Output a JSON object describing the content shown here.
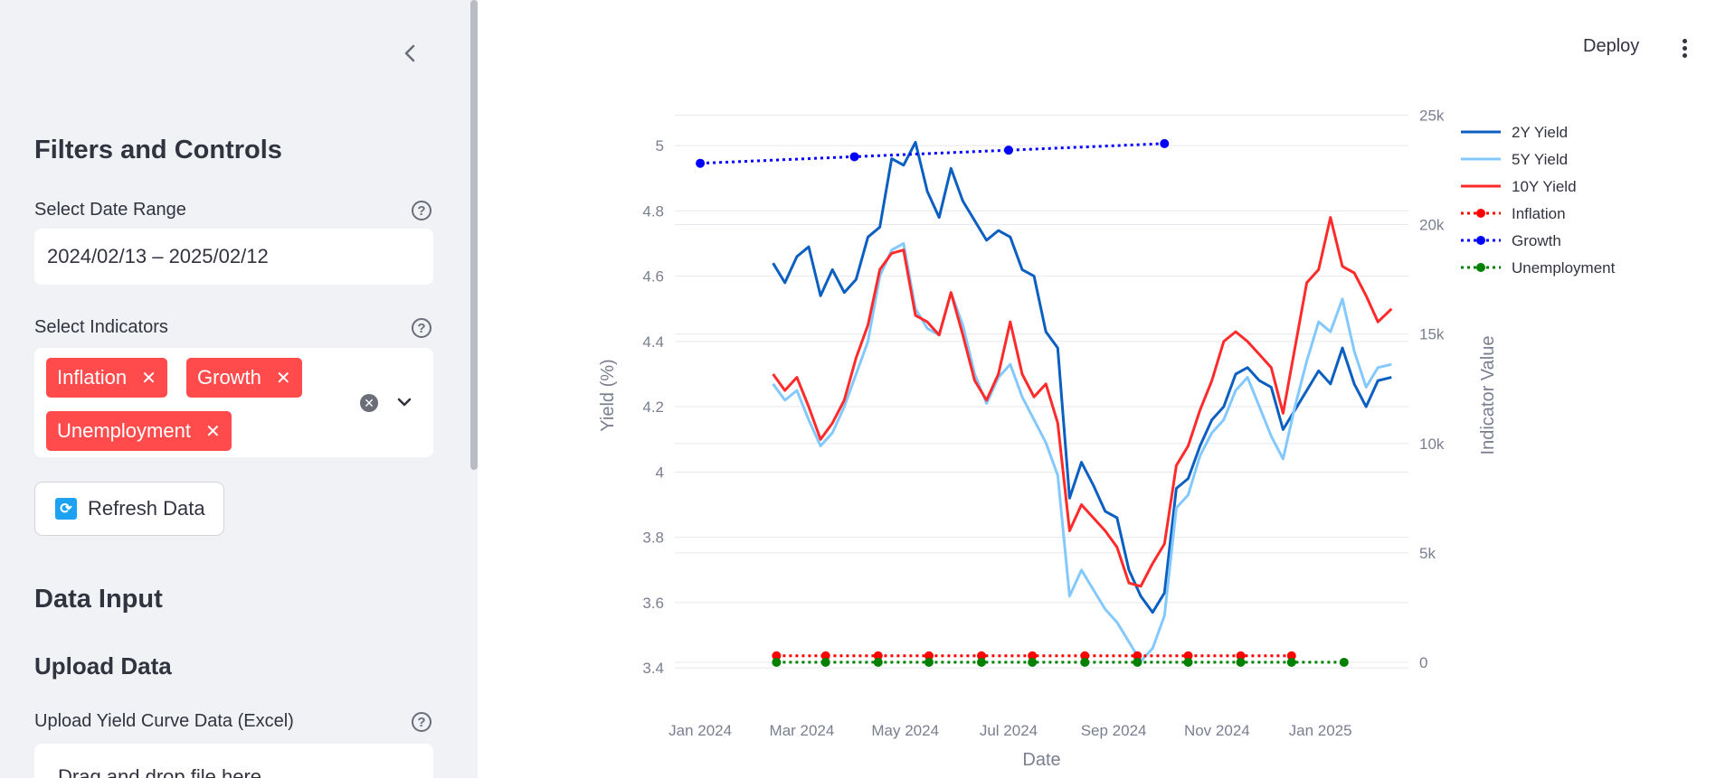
{
  "sidebar": {
    "title": "Filters and Controls",
    "date_range": {
      "label": "Select Date Range",
      "value": "2024/02/13 – 2025/02/12"
    },
    "indicators": {
      "label": "Select Indicators",
      "tags": [
        "Inflation",
        "Growth",
        "Unemployment"
      ]
    },
    "refresh_label": "Refresh Data",
    "data_input_title": "Data Input",
    "upload_title": "Upload Data",
    "upload_label": "Upload Yield Curve Data (Excel)",
    "upload_dropzone_text": "Drag and drop file here",
    "help_glyph": "?"
  },
  "header": {
    "deploy_label": "Deploy"
  },
  "chart_data": {
    "type": "line",
    "xlabel": "Date",
    "ylabel": "Yield (%)",
    "y2label": "Indicator Value",
    "x_ticks": [
      "Jan 2024",
      "Mar 2024",
      "May 2024",
      "Jul 2024",
      "Sep 2024",
      "Nov 2024",
      "Jan 2025"
    ],
    "x_range": [
      "2023-12-17",
      "2025-02-22"
    ],
    "ylim": [
      3.37,
      5.1
    ],
    "y_ticks": [
      3.4,
      3.6,
      3.8,
      4,
      4.2,
      4.4,
      4.6,
      4.8,
      5
    ],
    "y_tick_labels": [
      "3.4",
      "3.6",
      "3.8",
      "4",
      "4.2",
      "4.4",
      "4.6",
      "4.8",
      "5"
    ],
    "y2lim": [
      -700,
      25100
    ],
    "y2_ticks": [
      0,
      5000,
      10000,
      15000,
      20000,
      25000
    ],
    "y2_tick_labels": [
      "0",
      "5k",
      "10k",
      "15k",
      "20k",
      "25k"
    ],
    "grid": true,
    "legend_position": "right",
    "series": [
      {
        "name": "2Y Yield",
        "color": "#0b5fc0",
        "axis": "y",
        "style": "solid",
        "marker": false,
        "x": [
          "2024-02-13",
          "2024-02-20",
          "2024-02-27",
          "2024-03-05",
          "2024-03-12",
          "2024-03-19",
          "2024-03-26",
          "2024-04-02",
          "2024-04-09",
          "2024-04-16",
          "2024-04-23",
          "2024-04-30",
          "2024-05-07",
          "2024-05-14",
          "2024-05-21",
          "2024-05-28",
          "2024-06-04",
          "2024-06-11",
          "2024-06-18",
          "2024-06-25",
          "2024-07-02",
          "2024-07-09",
          "2024-07-16",
          "2024-07-23",
          "2024-07-30",
          "2024-08-06",
          "2024-08-13",
          "2024-08-20",
          "2024-08-27",
          "2024-09-03",
          "2024-09-10",
          "2024-09-17",
          "2024-09-24",
          "2024-10-01",
          "2024-10-08",
          "2024-10-15",
          "2024-10-22",
          "2024-10-29",
          "2024-11-05",
          "2024-11-12",
          "2024-11-19",
          "2024-11-26",
          "2024-12-03",
          "2024-12-10",
          "2024-12-17",
          "2024-12-24",
          "2024-12-31",
          "2025-01-07",
          "2025-01-14",
          "2025-01-21",
          "2025-01-28",
          "2025-02-04",
          "2025-02-12"
        ],
        "values": [
          4.64,
          4.58,
          4.66,
          4.69,
          4.54,
          4.62,
          4.55,
          4.59,
          4.72,
          4.75,
          4.96,
          4.94,
          5.01,
          4.86,
          4.78,
          4.93,
          4.83,
          4.77,
          4.71,
          4.74,
          4.72,
          4.62,
          4.6,
          4.43,
          4.38,
          3.92,
          4.03,
          3.96,
          3.88,
          3.86,
          3.7,
          3.62,
          3.57,
          3.63,
          3.95,
          3.98,
          4.08,
          4.16,
          4.2,
          4.3,
          4.32,
          4.28,
          4.26,
          4.13,
          4.19,
          4.25,
          4.31,
          4.27,
          4.38,
          4.27,
          4.2,
          4.28,
          4.29
        ]
      },
      {
        "name": "5Y Yield",
        "color": "#83c9ff",
        "axis": "y",
        "style": "solid",
        "marker": false,
        "x": [
          "2024-02-13",
          "2024-02-20",
          "2024-02-27",
          "2024-03-05",
          "2024-03-12",
          "2024-03-19",
          "2024-03-26",
          "2024-04-02",
          "2024-04-09",
          "2024-04-16",
          "2024-04-23",
          "2024-04-30",
          "2024-05-07",
          "2024-05-14",
          "2024-05-21",
          "2024-05-28",
          "2024-06-04",
          "2024-06-11",
          "2024-06-18",
          "2024-06-25",
          "2024-07-02",
          "2024-07-09",
          "2024-07-16",
          "2024-07-23",
          "2024-07-30",
          "2024-08-06",
          "2024-08-13",
          "2024-08-20",
          "2024-08-27",
          "2024-09-03",
          "2024-09-10",
          "2024-09-17",
          "2024-09-24",
          "2024-10-01",
          "2024-10-08",
          "2024-10-15",
          "2024-10-22",
          "2024-10-29",
          "2024-11-05",
          "2024-11-12",
          "2024-11-19",
          "2024-11-26",
          "2024-12-03",
          "2024-12-10",
          "2024-12-17",
          "2024-12-24",
          "2024-12-31",
          "2025-01-07",
          "2025-01-14",
          "2025-01-21",
          "2025-01-28",
          "2025-02-04",
          "2025-02-12"
        ],
        "values": [
          4.27,
          4.22,
          4.25,
          4.16,
          4.08,
          4.12,
          4.2,
          4.3,
          4.4,
          4.6,
          4.68,
          4.7,
          4.5,
          4.44,
          4.42,
          4.55,
          4.45,
          4.3,
          4.21,
          4.29,
          4.33,
          4.23,
          4.16,
          4.09,
          3.99,
          3.62,
          3.7,
          3.64,
          3.58,
          3.54,
          3.48,
          3.42,
          3.46,
          3.56,
          3.89,
          3.93,
          4.05,
          4.12,
          4.16,
          4.25,
          4.29,
          4.2,
          4.11,
          4.04,
          4.2,
          4.34,
          4.46,
          4.43,
          4.53,
          4.37,
          4.26,
          4.32,
          4.33
        ]
      },
      {
        "name": "10Y Yield",
        "color": "#ff2b2b",
        "axis": "y",
        "style": "solid",
        "marker": false,
        "x": [
          "2024-02-13",
          "2024-02-20",
          "2024-02-27",
          "2024-03-05",
          "2024-03-12",
          "2024-03-19",
          "2024-03-26",
          "2024-04-02",
          "2024-04-09",
          "2024-04-16",
          "2024-04-23",
          "2024-04-30",
          "2024-05-07",
          "2024-05-14",
          "2024-05-21",
          "2024-05-28",
          "2024-06-04",
          "2024-06-11",
          "2024-06-18",
          "2024-06-25",
          "2024-07-02",
          "2024-07-09",
          "2024-07-16",
          "2024-07-23",
          "2024-07-30",
          "2024-08-06",
          "2024-08-13",
          "2024-08-20",
          "2024-08-27",
          "2024-09-03",
          "2024-09-10",
          "2024-09-17",
          "2024-09-24",
          "2024-10-01",
          "2024-10-08",
          "2024-10-15",
          "2024-10-22",
          "2024-10-29",
          "2024-11-05",
          "2024-11-12",
          "2024-11-19",
          "2024-11-26",
          "2024-12-03",
          "2024-12-10",
          "2024-12-17",
          "2024-12-24",
          "2024-12-31",
          "2025-01-07",
          "2025-01-14",
          "2025-01-21",
          "2025-01-28",
          "2025-02-04",
          "2025-02-12"
        ],
        "values": [
          4.3,
          4.25,
          4.29,
          4.2,
          4.1,
          4.15,
          4.22,
          4.35,
          4.45,
          4.62,
          4.67,
          4.68,
          4.48,
          4.46,
          4.42,
          4.55,
          4.42,
          4.28,
          4.22,
          4.3,
          4.46,
          4.3,
          4.23,
          4.27,
          4.15,
          3.82,
          3.9,
          3.86,
          3.82,
          3.77,
          3.66,
          3.65,
          3.72,
          3.78,
          4.02,
          4.08,
          4.19,
          4.28,
          4.4,
          4.43,
          4.4,
          4.36,
          4.32,
          4.18,
          4.38,
          4.58,
          4.62,
          4.78,
          4.63,
          4.61,
          4.54,
          4.46,
          4.5
        ]
      },
      {
        "name": "Inflation",
        "color": "#ff0000",
        "axis": "y2",
        "style": "dotted",
        "marker": true,
        "x": [
          "2024-02-15",
          "2024-03-15",
          "2024-04-15",
          "2024-05-15",
          "2024-06-15",
          "2024-07-15",
          "2024-08-15",
          "2024-09-15",
          "2024-10-15",
          "2024-11-15",
          "2024-12-15"
        ],
        "values": [
          300,
          300,
          300,
          300,
          300,
          300,
          300,
          300,
          300,
          300,
          300
        ]
      },
      {
        "name": "Growth",
        "color": "#0000ff",
        "axis": "y2",
        "style": "dotted",
        "marker": true,
        "x": [
          "2024-01-01",
          "2024-04-01",
          "2024-07-01",
          "2024-10-01"
        ],
        "values": [
          22800,
          23100,
          23400,
          23700
        ]
      },
      {
        "name": "Unemployment",
        "color": "#008000",
        "axis": "y2",
        "style": "dotted",
        "marker": true,
        "x": [
          "2024-02-15",
          "2024-03-15",
          "2024-04-15",
          "2024-05-15",
          "2024-06-15",
          "2024-07-15",
          "2024-08-15",
          "2024-09-15",
          "2024-10-15",
          "2024-11-15",
          "2024-12-15",
          "2025-01-15"
        ],
        "values": [
          4,
          4,
          4,
          4,
          4,
          4,
          4,
          4,
          4,
          4,
          4,
          4
        ]
      }
    ]
  }
}
